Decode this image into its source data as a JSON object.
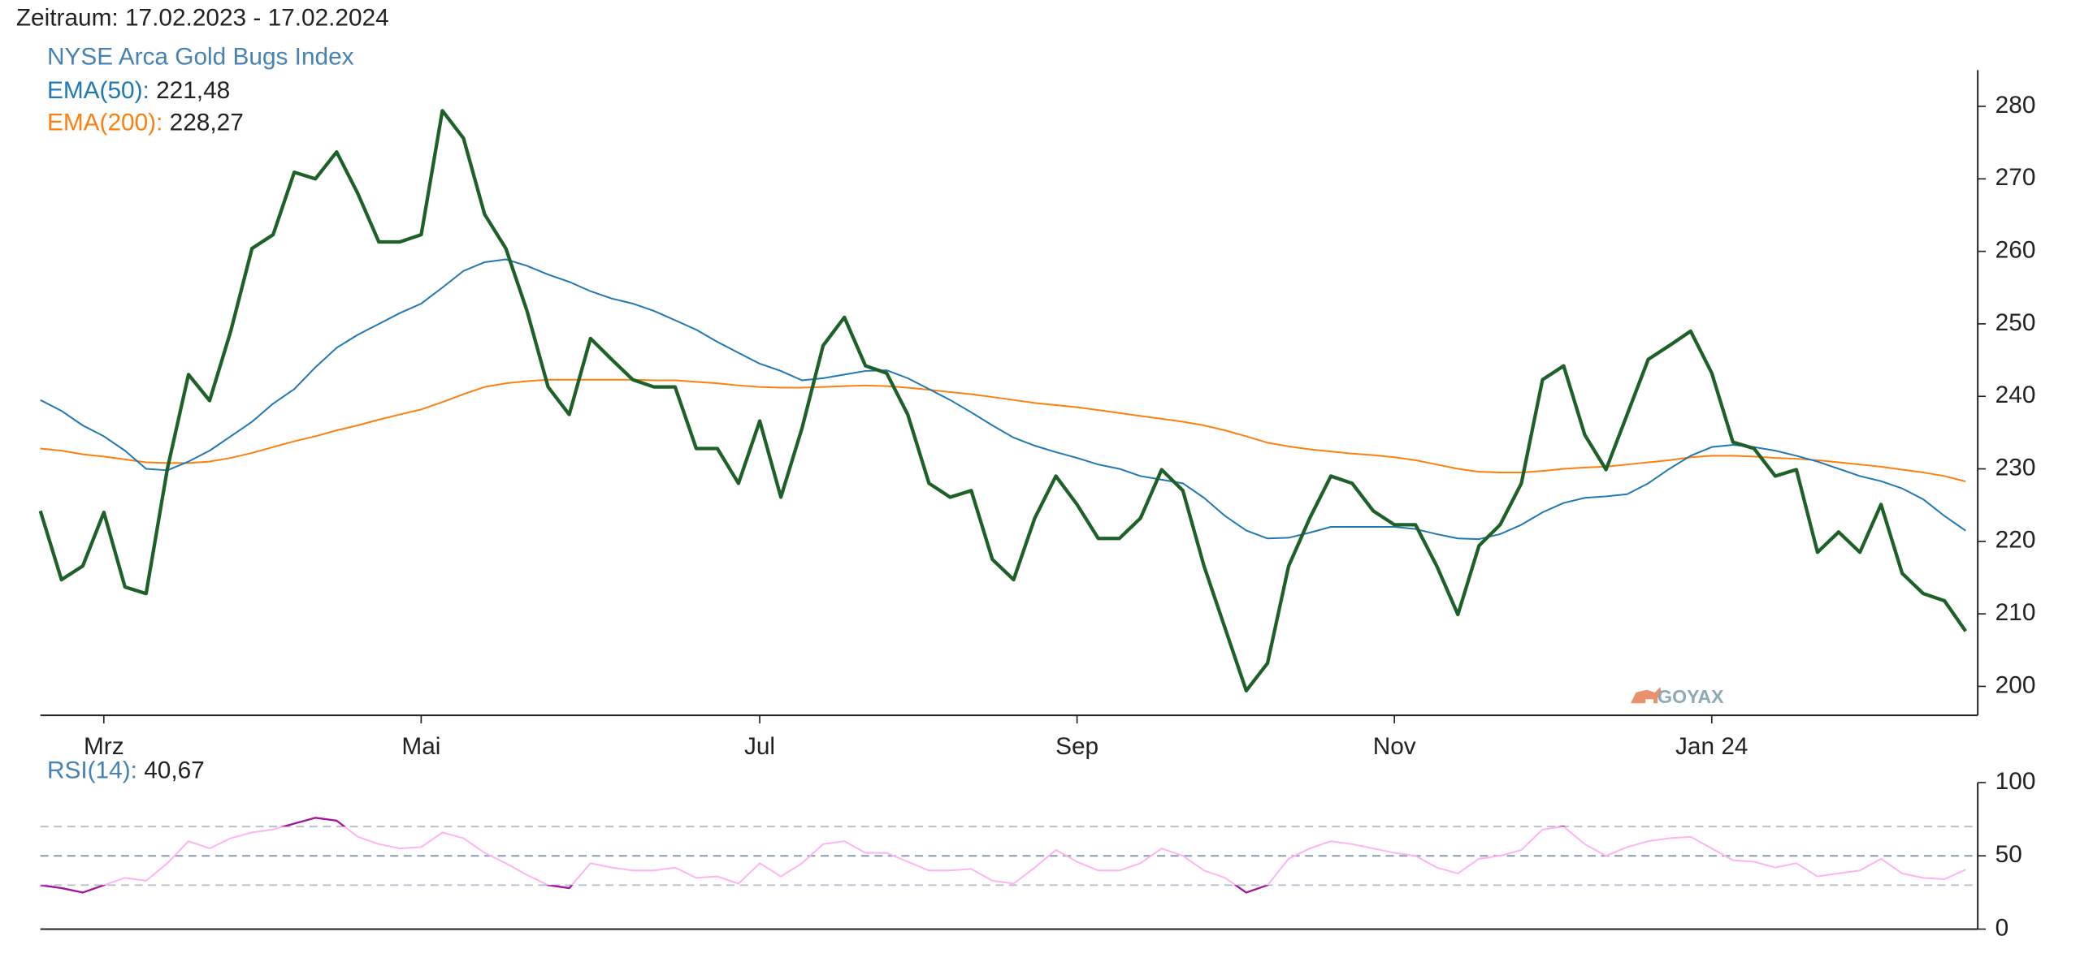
{
  "chart_data": [
    {
      "type": "line",
      "title": "Zeitraum: 17.02.2023 - 17.02.2024",
      "watermark": "GOYAX",
      "categories": [
        null,
        null,
        null,
        "Mrz",
        null,
        null,
        null,
        null,
        null,
        null,
        null,
        null,
        null,
        null,
        null,
        null,
        null,
        null,
        "Mai",
        null,
        null,
        null,
        null,
        null,
        null,
        null,
        null,
        null,
        null,
        null,
        null,
        null,
        null,
        null,
        "Jul",
        null,
        null,
        null,
        null,
        null,
        null,
        null,
        null,
        null,
        null,
        null,
        null,
        null,
        null,
        "Sep",
        null,
        null,
        null,
        null,
        null,
        null,
        null,
        null,
        null,
        null,
        null,
        null,
        null,
        null,
        "Nov",
        null,
        null,
        null,
        null,
        null,
        null,
        null,
        null,
        null,
        null,
        null,
        null,
        null,
        null,
        "Jan 24",
        null,
        null,
        null,
        null,
        null,
        null,
        null,
        null,
        null,
        null,
        null,
        null
      ],
      "ylim": [
        196,
        285
      ],
      "yticks": [
        200,
        210,
        220,
        230,
        240,
        250,
        260,
        270,
        280
      ],
      "series": [
        {
          "name": "NYSE Arca Gold Bugs Index",
          "color": "#1e6128",
          "label_color": "#4682b4",
          "values": [
            224.2,
            214.7,
            216.6,
            224,
            213.7,
            212.8,
            230,
            243,
            239.4,
            249,
            260.4,
            262.3,
            270.9,
            270,
            273.7,
            268,
            261.3,
            261.3,
            262.3,
            279.4,
            275.6,
            265.1,
            260.4,
            251.8,
            241.3,
            237.5,
            248,
            245.1,
            242.3,
            241.3,
            241.3,
            232.8,
            232.8,
            228,
            236.6,
            226.1,
            235.6,
            247,
            250.9,
            244.2,
            243.2,
            237.5,
            228,
            226.1,
            227,
            217.5,
            214.7,
            223.2,
            229,
            225.1,
            220.4,
            220.4,
            223.2,
            229.9,
            227,
            216.6,
            208,
            199.4,
            203.2,
            216.6,
            223.2,
            229,
            228,
            224.2,
            222.3,
            222.3,
            216.6,
            209.9,
            219.4,
            222.3,
            228,
            242.3,
            244.2,
            234.7,
            229.9,
            237.5,
            245.1,
            247,
            249,
            243.2,
            233.7,
            232.8,
            229,
            229.9,
            218.5,
            221.3,
            218.5,
            225.1,
            215.6,
            212.8,
            211.8,
            207.6
          ]
        },
        {
          "name": "EMA(50):",
          "color": "#1f77b4",
          "label_color": "#1f77b4",
          "legend_value_label": "221,48",
          "values": [
            239.5,
            238,
            236,
            234.5,
            232.5,
            230,
            229.8,
            231,
            232.5,
            234.5,
            236.5,
            239,
            241,
            244,
            246.7,
            248.5,
            250,
            251.5,
            252.8,
            255,
            257.3,
            258.5,
            258.9,
            258,
            256.8,
            255.8,
            254.5,
            253.5,
            252.8,
            251.8,
            250.5,
            249.2,
            247.5,
            246,
            244.5,
            243.5,
            242.2,
            242.5,
            243,
            243.5,
            243.6,
            242.5,
            241,
            239.5,
            237.8,
            236,
            234.3,
            233.2,
            232.3,
            231.5,
            230.6,
            230,
            229,
            228.5,
            228,
            226,
            223.5,
            221.5,
            220.4,
            220.5,
            221.2,
            222,
            222,
            222,
            222,
            221.7,
            221,
            220.4,
            220.3,
            221,
            222.3,
            224,
            225.3,
            226,
            226.2,
            226.5,
            228,
            230,
            231.8,
            233,
            233.3,
            233,
            232.5,
            231.8,
            231,
            230,
            229,
            228.3,
            227.3,
            225.8,
            223.5,
            221.48
          ]
        },
        {
          "name": "EMA(200):",
          "color": "#ff7f0e",
          "label_color": "#ff7f0e",
          "legend_value_label": "228,27",
          "values": [
            232.8,
            232.5,
            232,
            231.7,
            231.3,
            230.9,
            230.8,
            230.8,
            231,
            231.5,
            232.2,
            233,
            233.8,
            234.5,
            235.3,
            236,
            236.8,
            237.5,
            238.2,
            239.2,
            240.3,
            241.3,
            241.8,
            242.1,
            242.3,
            242.3,
            242.3,
            242.3,
            242.3,
            242.2,
            242.2,
            242,
            241.8,
            241.5,
            241.3,
            241.2,
            241.2,
            241.3,
            241.4,
            241.5,
            241.4,
            241.2,
            240.9,
            240.6,
            240.3,
            239.9,
            239.5,
            239.1,
            238.8,
            238.5,
            238.1,
            237.7,
            237.3,
            236.9,
            236.5,
            236,
            235.3,
            234.5,
            233.6,
            233.1,
            232.7,
            232.4,
            232.1,
            231.9,
            231.6,
            231.2,
            230.6,
            230,
            229.6,
            229.5,
            229.5,
            229.7,
            230,
            230.2,
            230.3,
            230.6,
            230.9,
            231.2,
            231.6,
            231.8,
            231.8,
            231.7,
            231.5,
            231.4,
            231.2,
            230.9,
            230.6,
            230.3,
            229.9,
            229.5,
            229,
            228.27
          ]
        }
      ]
    },
    {
      "type": "rsi",
      "ylim": [
        0,
        100
      ],
      "yticks": [
        0,
        50,
        100
      ],
      "levels": [
        30,
        50,
        70
      ],
      "series": [
        {
          "name": "RSI(14):",
          "color": "#ffb3f0",
          "extreme_color": "#a0169a",
          "label_color": "#4682b4",
          "legend_value_label": "40,67",
          "values": [
            30,
            28,
            25,
            30,
            35,
            33,
            45,
            60,
            55,
            62,
            66,
            68,
            72,
            76,
            74,
            63,
            58,
            55,
            56,
            66,
            62,
            52,
            45,
            37,
            30,
            28,
            45,
            42,
            40,
            40,
            42,
            35,
            36,
            31,
            45,
            36,
            45,
            58,
            60,
            52,
            52,
            46,
            40,
            40,
            41,
            33,
            31,
            42,
            54,
            46,
            40,
            40,
            45,
            55,
            50,
            40,
            35,
            25,
            30,
            48,
            55,
            60,
            58,
            55,
            52,
            50,
            42,
            38,
            48,
            50,
            54,
            68,
            70,
            58,
            50,
            56,
            60,
            62,
            63,
            55,
            47,
            46,
            42,
            45,
            36,
            38,
            40,
            48,
            38,
            35,
            34,
            40.67
          ]
        }
      ]
    }
  ]
}
